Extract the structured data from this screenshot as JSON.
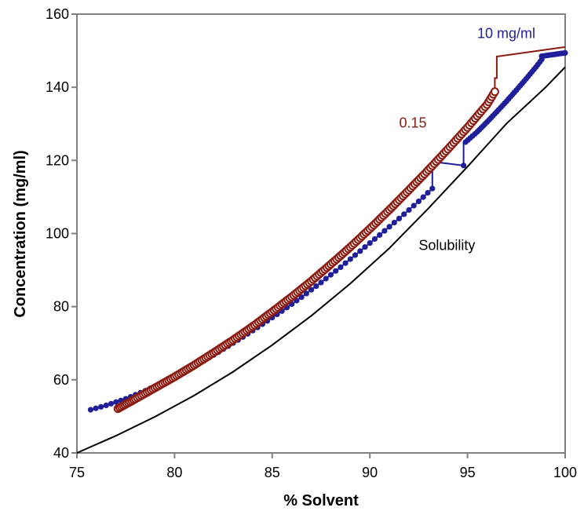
{
  "chart_data": {
    "type": "scatter",
    "xlabel": "% Solvent",
    "ylabel": "Concentration (mg/ml)",
    "xlim": [
      75,
      100
    ],
    "ylim": [
      40,
      160
    ],
    "xticks": [
      75,
      80,
      85,
      90,
      95,
      100
    ],
    "yticks": [
      40,
      60,
      80,
      100,
      120,
      140,
      160
    ],
    "grid": false,
    "colors": {
      "blue": "#1f1f99",
      "red": "#8b1a10",
      "solubility": "#000000",
      "axis": "#808080"
    },
    "series": [
      {
        "color": "#1f1f99",
        "marker": "filled-circle",
        "points": [
          [
            75.7,
            51.8
          ],
          [
            76.5,
            53.0
          ],
          [
            77.5,
            54.8
          ],
          [
            78.5,
            57.0
          ],
          [
            79.5,
            59.5
          ],
          [
            80.5,
            62.3
          ],
          [
            81.5,
            65.2
          ],
          [
            82.5,
            68.4
          ],
          [
            83.5,
            71.7
          ],
          [
            84.5,
            75.2
          ],
          [
            85.5,
            78.8
          ],
          [
            86.5,
            82.6
          ],
          [
            87.5,
            86.6
          ],
          [
            88.5,
            90.8
          ],
          [
            89.5,
            95.2
          ],
          [
            90.5,
            99.6
          ],
          [
            91.5,
            104.1
          ],
          [
            92.5,
            108.8
          ],
          [
            93.2,
            112.3
          ],
          [
            93.2,
            118.0
          ],
          [
            93.3,
            119.2
          ]
        ],
        "step_path": [
          [
            93.3,
            119.2
          ],
          [
            93.3,
            119.6
          ],
          [
            94.8,
            118.6
          ],
          [
            94.8,
            124.8
          ]
        ],
        "points_after": [
          [
            94.9,
            125.0
          ],
          [
            95.5,
            127.8
          ],
          [
            96.0,
            130.5
          ],
          [
            96.5,
            133.3
          ],
          [
            97.0,
            136.2
          ],
          [
            97.5,
            139.2
          ],
          [
            98.0,
            142.3
          ],
          [
            98.5,
            145.5
          ],
          [
            98.8,
            147.6
          ],
          [
            98.8,
            148.5
          ],
          [
            100,
            149.4
          ]
        ]
      },
      {
        "name": "0.15",
        "color": "#8b1a10",
        "marker": "open-circle",
        "points": [
          [
            77.1,
            52.1
          ],
          [
            78.0,
            54.8
          ],
          [
            79.0,
            57.8
          ],
          [
            80.0,
            60.8
          ],
          [
            81.0,
            64.0
          ],
          [
            82.0,
            67.4
          ],
          [
            83.0,
            70.9
          ],
          [
            84.0,
            74.6
          ],
          [
            85.0,
            78.6
          ],
          [
            86.0,
            82.7
          ],
          [
            87.0,
            87.0
          ],
          [
            88.0,
            91.6
          ],
          [
            89.0,
            96.3
          ],
          [
            90.0,
            101.3
          ],
          [
            91.0,
            106.5
          ],
          [
            92.0,
            111.9
          ],
          [
            93.0,
            117.4
          ],
          [
            94.0,
            123.1
          ],
          [
            95.0,
            129.0
          ],
          [
            96.0,
            135.3
          ],
          [
            96.4,
            138.8
          ]
        ],
        "step_path": [
          [
            96.4,
            138.8
          ],
          [
            96.4,
            142.5
          ],
          [
            96.5,
            142.5
          ],
          [
            96.5,
            148.4
          ],
          [
            100,
            151.0
          ]
        ]
      },
      {
        "name": "Solubility",
        "color": "#000000",
        "type": "line",
        "points": [
          [
            75,
            40.0
          ],
          [
            77,
            44.7
          ],
          [
            79,
            49.9
          ],
          [
            81,
            55.7
          ],
          [
            83,
            62.2
          ],
          [
            85,
            69.5
          ],
          [
            87,
            77.5
          ],
          [
            89,
            86.3
          ],
          [
            91,
            96.0
          ],
          [
            93,
            106.9
          ],
          [
            95,
            118.3
          ],
          [
            97,
            130.1
          ],
          [
            99,
            140.0
          ],
          [
            100,
            145.5
          ]
        ]
      }
    ],
    "annotations": [
      {
        "text": "10 mg/ml",
        "x": 95.5,
        "y": 153.5,
        "color": "#1f1f99"
      },
      {
        "text": "0.15",
        "x": 91.5,
        "y": 129.0,
        "color": "#8b1a10"
      },
      {
        "text": "Solubility",
        "x": 92.5,
        "y": 95.5,
        "color": "#000000"
      }
    ]
  }
}
